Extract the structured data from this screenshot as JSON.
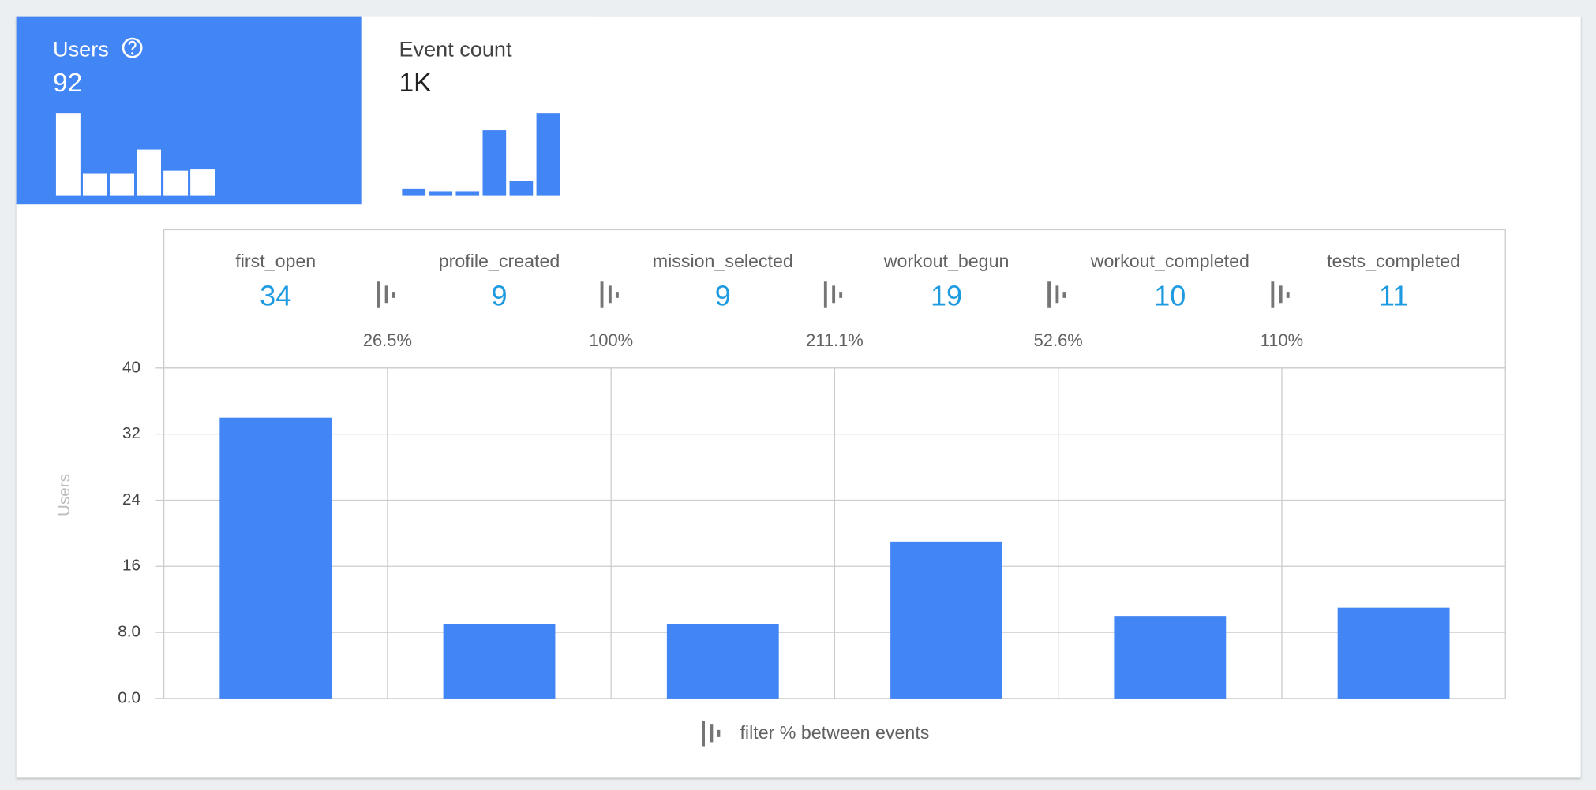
{
  "tiles": [
    {
      "label": "Users",
      "value": 92,
      "sparkline": [
        81,
        21,
        21,
        45,
        24,
        26
      ]
    },
    {
      "label": "Event count",
      "value": "1K",
      "sparkline": [
        6,
        4,
        4,
        64,
        14,
        81
      ]
    }
  ],
  "chart_data": {
    "type": "bar",
    "categories": [
      "first_open",
      "profile_created",
      "mission_selected",
      "workout_begun",
      "workout_completed",
      "tests_completed"
    ],
    "values": [
      34,
      9,
      9,
      19,
      10,
      11
    ],
    "conversions": [
      "26.5%",
      "100%",
      "211.1%",
      "52.6%",
      "110%"
    ],
    "color": "#4285f4",
    "ylabel": "Users",
    "ylim": [
      0,
      40
    ],
    "yticks": [
      {
        "value": 0,
        "label": "0.0"
      },
      {
        "value": 8,
        "label": "8.0"
      },
      16,
      24,
      32,
      40
    ],
    "grid": true,
    "legend": "filter % between events"
  }
}
